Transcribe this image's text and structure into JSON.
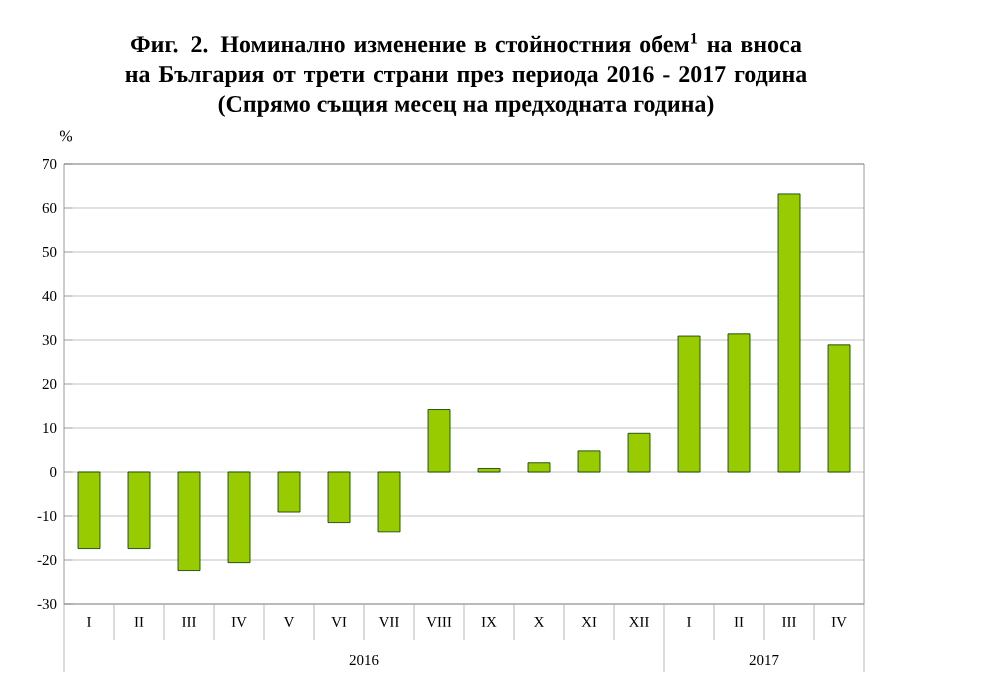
{
  "chart_data": {
    "type": "bar",
    "title": "Фиг. 2. Номинално изменение в стойностния обем$^{1}$ на вноса на България от трети страни през периода 2016 - 2017 година",
    "subtitle": "(Спрямо същия месец на предходната година)",
    "ylabel": "%",
    "categories": [
      "I",
      "II",
      "III",
      "IV",
      "V",
      "VI",
      "VII",
      "VIII",
      "IX",
      "X",
      "XI",
      "XII",
      "I",
      "II",
      "III",
      "IV"
    ],
    "values": [
      -17.4,
      -17.4,
      -22.4,
      -20.6,
      -9.1,
      -11.5,
      -13.6,
      14.2,
      0.8,
      2.1,
      4.8,
      8.8,
      30.9,
      31.4,
      63.2,
      28.9
    ],
    "color": "#99cc00",
    "ylim": [
      -30,
      70
    ],
    "yticks": [
      -30,
      -20,
      -10,
      0,
      10,
      20,
      30,
      40,
      50,
      60,
      70
    ],
    "grid": "y",
    "annotations": [
      "2016",
      "2017"
    ]
  }
}
